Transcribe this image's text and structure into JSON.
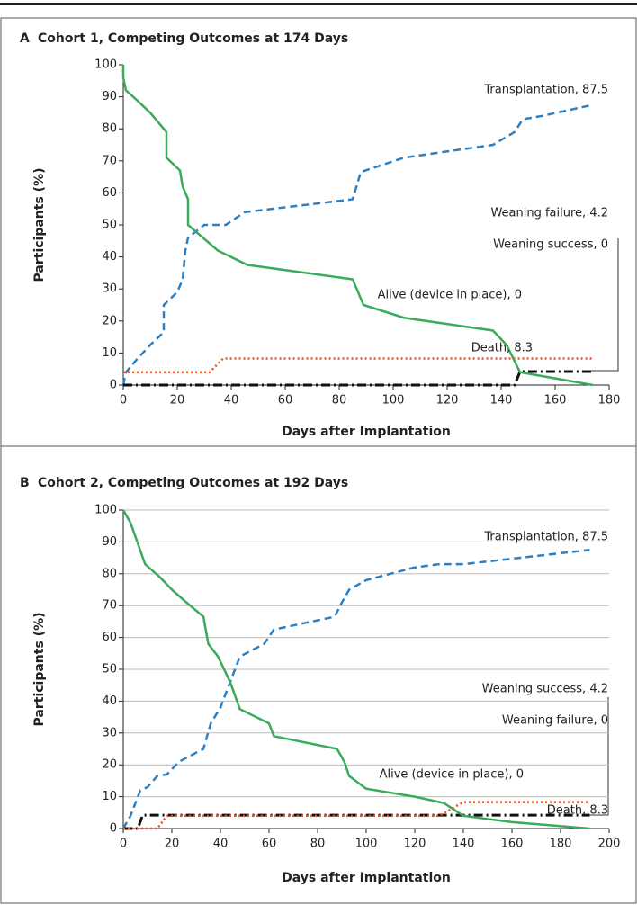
{
  "chart_data": [
    {
      "type": "line",
      "panel": "A",
      "title": "Cohort 1, Competing Outcomes at 174 Days",
      "x_label": "Days after Implantation",
      "y_label": "Participants (%)",
      "xlim": [
        0,
        180
      ],
      "xticks": [
        0,
        20,
        40,
        60,
        80,
        100,
        120,
        140,
        160,
        180
      ],
      "ylim": [
        0,
        100
      ],
      "yticks": [
        0,
        10,
        20,
        30,
        40,
        50,
        60,
        70,
        80,
        90,
        100
      ],
      "grid": false,
      "series": [
        {
          "name": "Transplantation, 87.5",
          "color": "#2e7fc2",
          "style": "dashed",
          "x": [
            0,
            1,
            5,
            10,
            15,
            15,
            20,
            22,
            23,
            24,
            30,
            38,
            45,
            85,
            88,
            104,
            137,
            145,
            148,
            155,
            174
          ],
          "values": [
            0,
            4,
            8,
            12.5,
            16.5,
            25,
            29,
            33,
            42,
            46,
            50,
            50,
            54,
            58,
            66.5,
            71,
            75,
            79,
            83,
            84,
            87.5
          ]
        },
        {
          "name": "Weaning failure, 4.2",
          "color": "#111111",
          "style": "dashdot",
          "x": [
            0,
            145,
            147,
            174
          ],
          "values": [
            0,
            0,
            4.2,
            4.2
          ]
        },
        {
          "name": "Weaning success, 0",
          "color": "#111111",
          "style": "dashdot",
          "x": [
            0,
            145
          ],
          "values": [
            0,
            0
          ]
        },
        {
          "name": "Alive (device in place), 0",
          "color": "#3aaa5c",
          "style": "solid",
          "x": [
            0,
            0,
            1,
            5,
            10,
            16,
            16,
            21,
            22,
            24,
            24,
            35,
            46,
            85,
            89,
            104,
            137,
            142,
            147,
            174
          ],
          "values": [
            100,
            96,
            92,
            89,
            85,
            79,
            71,
            67,
            62,
            58,
            50,
            42,
            37.5,
            33,
            25,
            21,
            17,
            12.5,
            4,
            0
          ]
        },
        {
          "name": "Death, 8.3",
          "color": "#e8552a",
          "style": "dotted",
          "x": [
            0,
            32,
            37,
            174
          ],
          "values": [
            4,
            4,
            8.3,
            8.3
          ]
        }
      ]
    },
    {
      "type": "line",
      "panel": "B",
      "title": "Cohort 2, Competing Outcomes at 192 Days",
      "x_label": "Days after Implantation",
      "y_label": "Participants (%)",
      "xlim": [
        0,
        200
      ],
      "xticks": [
        0,
        20,
        40,
        60,
        80,
        100,
        120,
        140,
        160,
        180,
        200
      ],
      "ylim": [
        0,
        100
      ],
      "yticks": [
        0,
        10,
        20,
        30,
        40,
        50,
        60,
        70,
        80,
        90,
        100
      ],
      "grid": true,
      "series": [
        {
          "name": "Transplantation, 87.5",
          "color": "#2e7fc2",
          "style": "dashed",
          "x": [
            0,
            3,
            7,
            10,
            14,
            18,
            23,
            33,
            36,
            40,
            44,
            48,
            58,
            62,
            87,
            90,
            93,
            100,
            120,
            130,
            140,
            192
          ],
          "values": [
            0,
            4,
            12,
            13,
            16.5,
            17,
            21,
            25,
            33,
            38,
            46,
            54,
            58,
            62.5,
            66.5,
            71,
            75,
            78,
            82,
            83,
            83,
            87.5
          ]
        },
        {
          "name": "Weaning success, 4.2",
          "color": "#111111",
          "style": "dashdot",
          "x": [
            0,
            6,
            8,
            192
          ],
          "values": [
            0,
            0,
            4.2,
            4.2
          ]
        },
        {
          "name": "Weaning failure, 0",
          "color": "#111111",
          "style": "dashdot",
          "x": [
            0,
            6
          ],
          "values": [
            0,
            0
          ]
        },
        {
          "name": "Alive (device in place), 0",
          "color": "#3aaa5c",
          "style": "solid",
          "x": [
            0,
            3,
            9,
            15,
            20,
            26,
            33,
            35,
            39,
            44,
            48,
            60,
            62,
            88,
            91,
            93,
            100,
            120,
            132,
            140,
            160,
            192
          ],
          "values": [
            100,
            96,
            83,
            79,
            75,
            71,
            66.5,
            58,
            54,
            46,
            37.5,
            33,
            29,
            25,
            21,
            16.5,
            12.5,
            10,
            8,
            4,
            2,
            0
          ]
        },
        {
          "name": "Death, 8.3",
          "color": "#e8552a",
          "style": "dotted",
          "x": [
            0,
            14,
            18,
            130,
            140,
            192
          ],
          "values": [
            0,
            0,
            4,
            4,
            8.3,
            8.3
          ]
        }
      ]
    }
  ]
}
